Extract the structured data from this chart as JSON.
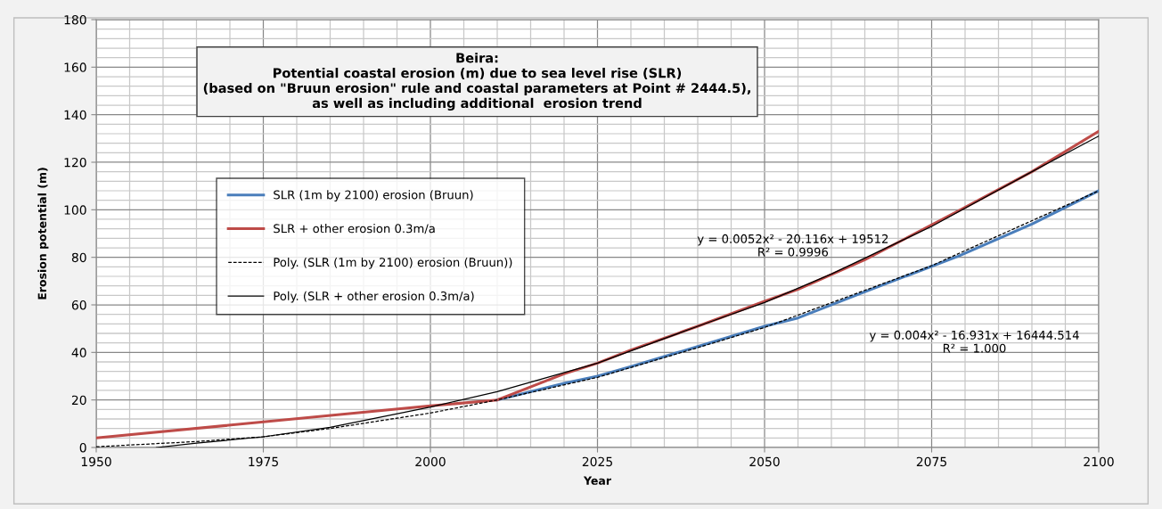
{
  "chart_data": {
    "type": "line",
    "title": "Beira:\nPotential coastal erosion (m) due to sea level rise (SLR)\n(based on \"Bruun erosion\" rule and coastal parameters at Point # 2444.5),\nas well as including additional  erosion trend",
    "xlabel": "Year",
    "ylabel": "Erosion potential (m)",
    "series": [
      {
        "name": "SLR (1m by 2100) erosion (Bruun)",
        "color": "#4a7ebb",
        "line_style": "solid",
        "x": [
          2010,
          2020,
          2025,
          2030,
          2040,
          2050,
          2055,
          2065,
          2079,
          2090,
          2100
        ],
        "values": [
          20,
          27,
          30,
          34,
          42.5,
          51,
          54.5,
          65.5,
          80.5,
          94,
          108
        ]
      },
      {
        "name": "SLR + other erosion 0.3m/a",
        "color": "#be4b48",
        "line_style": "solid",
        "x": [
          1950,
          2000,
          2010,
          2020,
          2025,
          2030,
          2040,
          2050,
          2055,
          2065,
          2079,
          2090,
          2100
        ],
        "values": [
          4,
          17.5,
          20,
          31,
          35.5,
          41,
          51,
          61.5,
          66.5,
          79,
          99.5,
          116,
          133
        ]
      },
      {
        "name": "Poly. (SLR (1m by 2100) erosion (Bruun))",
        "color": "#000000",
        "line_style": "dashed",
        "x": [
          1950,
          1965,
          1975,
          1985,
          2000,
          2010,
          2025,
          2040,
          2050,
          2075,
          2100
        ],
        "values": [
          0.3,
          2.5,
          4.5,
          8,
          14.5,
          20,
          29.5,
          42,
          50.5,
          76.5,
          108
        ]
      },
      {
        "name": "Poly. (SLR + other erosion 0.3m/a)",
        "color": "#000000",
        "line_style": "solid",
        "x": [
          1959,
          1965,
          1975,
          1985,
          2000,
          2010,
          2025,
          2040,
          2050,
          2060,
          2075,
          2090,
          2100
        ],
        "values": [
          0,
          1.8,
          4.5,
          8.5,
          17,
          23.5,
          35.5,
          51,
          61,
          73,
          93,
          116,
          131
        ]
      }
    ],
    "annotations": [
      "y = 0.0052x² - 20.116x + 19512\nR² = 0.9996",
      "y = 0.004x² - 16.931x + 16444.514\nR² = 1.000"
    ],
    "xlim": [
      1950,
      2100
    ],
    "xticks": [
      1950,
      1975,
      2000,
      2025,
      2050,
      2075,
      2100
    ],
    "ylim": [
      0,
      180
    ],
    "yticks": [
      0,
      20,
      40,
      60,
      80,
      100,
      120,
      140,
      160,
      180
    ],
    "grid": true,
    "legend": "left",
    "marker": "none"
  }
}
